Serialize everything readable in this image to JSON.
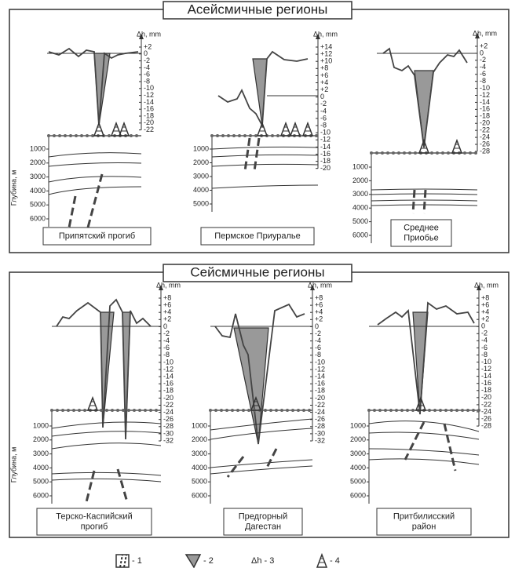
{
  "panels": [
    {
      "title": "Асейсмичные регионы",
      "depth_label": "Глубина, м",
      "plots": [
        {
          "label": [
            "Припятский прогиб"
          ],
          "dh_label": "Δh, mm",
          "dh_ticks": [
            "+2",
            "0",
            "-2",
            "-4",
            "-6",
            "-8",
            "-10",
            "-12",
            "-14",
            "-16",
            "-18",
            "-20",
            "-22"
          ],
          "depth_ticks": [
            "1000",
            "2000",
            "3000",
            "4000",
            "5000",
            "6000"
          ]
        },
        {
          "label": [
            "Пермское Приуралье"
          ],
          "dh_label": "Δh, mm",
          "dh_ticks": [
            "+14",
            "+12",
            "+10",
            "+8",
            "+6",
            "+4",
            "+2",
            "0",
            "-2",
            "-4",
            "-6",
            "-8",
            "-10",
            "-12",
            "-14",
            "-16",
            "-18",
            "-20"
          ],
          "depth_ticks": [
            "1000",
            "2000",
            "3000",
            "4000",
            "5000"
          ]
        },
        {
          "label": [
            "Среднее",
            "Приобье"
          ],
          "dh_label": "Δh, mm",
          "dh_ticks": [
            "+2",
            "0",
            "-2",
            "-4",
            "-6",
            "-8",
            "-10",
            "-12",
            "-14",
            "-16",
            "-18",
            "-20",
            "-22",
            "-24",
            "-26",
            "-28"
          ],
          "depth_ticks": [
            "1000",
            "2000",
            "3000",
            "4000",
            "5000",
            "6000"
          ]
        }
      ]
    },
    {
      "title": "Сейсмичные регионы",
      "depth_label": "Глубина, м",
      "plots": [
        {
          "label": [
            "Терско-Каспийский",
            "прогиб"
          ],
          "dh_label": "Δh, mm",
          "dh_ticks": [
            "+8",
            "+6",
            "+4",
            "+2",
            "0",
            "-2",
            "-4",
            "-6",
            "-8",
            "-10",
            "-12",
            "-14",
            "-16",
            "-18",
            "-20",
            "-22",
            "-24",
            "-26",
            "-28",
            "-30",
            "-32"
          ],
          "depth_ticks": [
            "1000",
            "2000",
            "3000",
            "4000",
            "5000",
            "6000"
          ]
        },
        {
          "label": [
            "Предгорный",
            "Дагестан"
          ],
          "dh_label": "Δh, mm",
          "dh_ticks": [
            "+8",
            "+6",
            "+4",
            "+2",
            "0",
            "-2",
            "-4",
            "-6",
            "-8",
            "-10",
            "-12",
            "-14",
            "-16",
            "-18",
            "-20",
            "-22",
            "-24",
            "-26",
            "-28",
            "-30",
            "-32"
          ],
          "depth_ticks": [
            "1000",
            "2000",
            "3000",
            "4000",
            "5000",
            "6000"
          ]
        },
        {
          "label": [
            "Притбилисский",
            "район"
          ],
          "dh_label": "Δh, mm",
          "dh_ticks": [
            "+8",
            "+6",
            "+4",
            "+2",
            "0",
            "-2",
            "-4",
            "-6",
            "-8",
            "-10",
            "-12",
            "-14",
            "-16",
            "-18",
            "-20",
            "-22",
            "-24",
            "-26",
            "-28"
          ],
          "depth_ticks": [
            "1000",
            "2000",
            "3000",
            "4000",
            "5000",
            "6000"
          ]
        }
      ]
    }
  ],
  "legend": [
    "- 1",
    "- 2",
    "Δh - 3",
    "- 4"
  ]
}
